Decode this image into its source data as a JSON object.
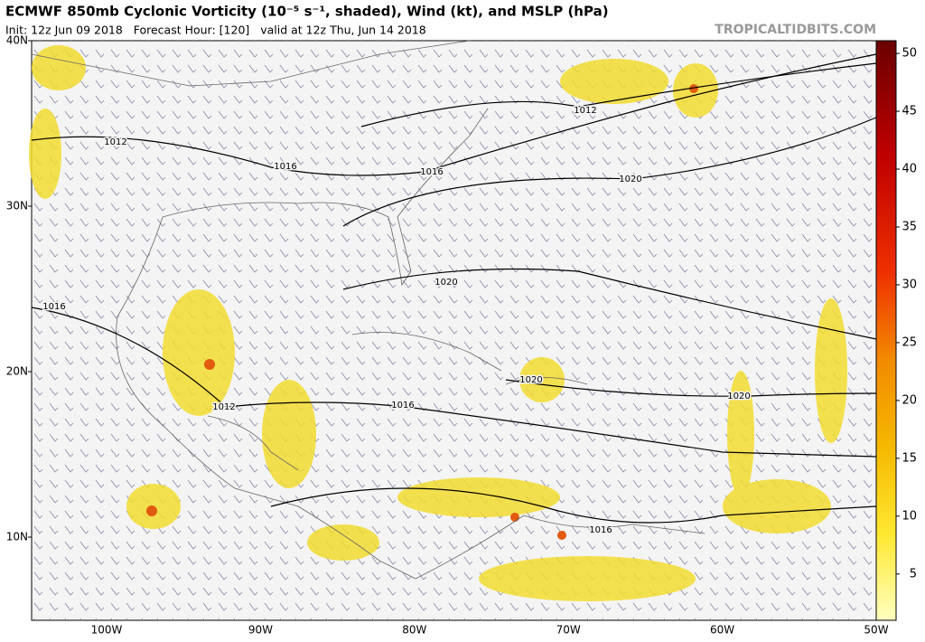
{
  "header": {
    "title": "ECMWF 850mb Cyclonic Vorticity (10⁻⁵ s⁻¹, shaded), Wind (kt), and MSLP (hPa)",
    "subtitle": "Init: 12z Jun 09 2018   Forecast Hour: [120]   valid at 12z Thu, Jun 14 2018",
    "site": "TROPICALTIDBITS.COM"
  },
  "map": {
    "lat_labels": [
      "40N",
      "30N",
      "20N",
      "10N"
    ],
    "lon_labels": [
      "100W",
      "90W",
      "80W",
      "70W",
      "60W",
      "50W"
    ],
    "isobar_labels": [
      "1012",
      "1016",
      "1016",
      "1020",
      "1012",
      "1020",
      "1016",
      "1020",
      "1012",
      "1016",
      "1020",
      "1016"
    ]
  },
  "colorbar": {
    "range": [
      1,
      51.1
    ],
    "ticks": [
      5,
      10,
      15,
      20,
      25,
      30,
      35,
      40,
      45,
      50
    ]
  }
}
